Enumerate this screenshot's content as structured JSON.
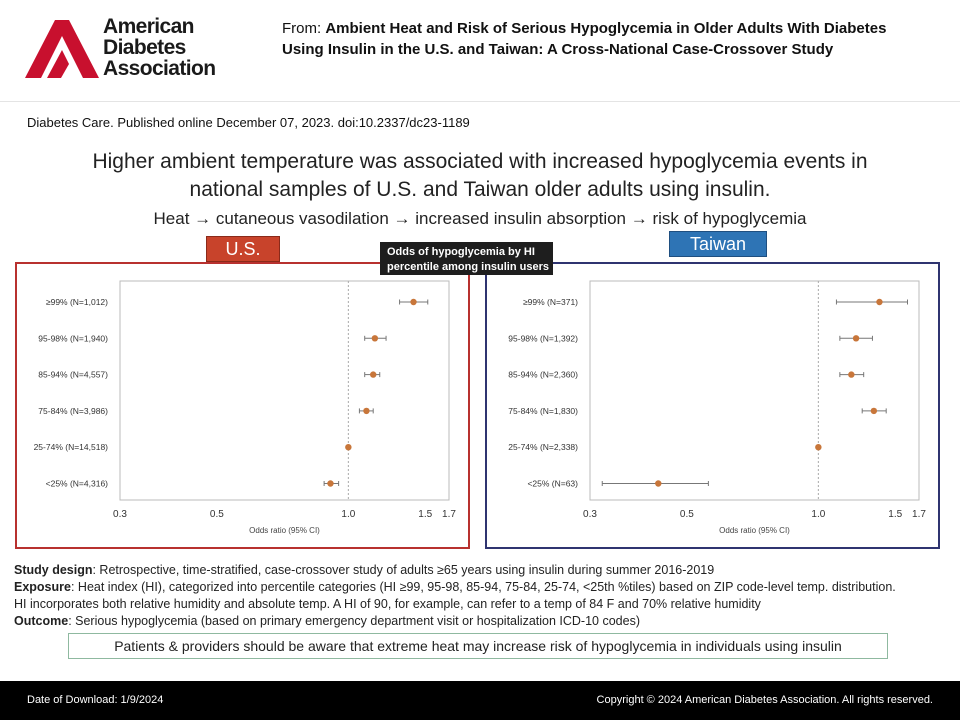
{
  "header": {
    "logo_text": [
      "American",
      "Diabetes",
      "Association"
    ],
    "from_label": "From:",
    "article_title": "Ambient Heat and Risk of Serious Hypoglycemia in Older Adults With Diabetes Using Insulin in the U.S. and Taiwan: A Cross-National Case-Crossover Study",
    "citation": "Diabetes Care. Published online  December 07, 2023. doi:10.2337/dc23-1189"
  },
  "figure": {
    "title": "Higher ambient temperature was associated with increased hypoglycemia events in national samples of U.S. and Taiwan older adults using insulin.",
    "mechanism": "Heat → cutaneous vasodilation → increased insulin absorption → risk of hypoglycemia",
    "callout": "Odds of hypoglycemia by HI percentile among insulin users",
    "colors": {
      "us": "#c8432b",
      "taiwan": "#2e74b5",
      "point": "#c8763a",
      "us_border": "#b8312f",
      "taiwan_border": "#2f3470"
    },
    "notes": {
      "study_design_label": "Study design",
      "study_design": ": Retrospective, time-stratified, case-crossover study of adults ≥65 years using insulin during summer 2016-2019",
      "exposure_label": "Exposure",
      "exposure": ": Heat index (HI), categorized into percentile categories (HI ≥99, 95-98, 85-94, 75-84, 25-74, <25th %tiles) based on ZIP code-level temp. distribution.",
      "exposure_2": "HI incorporates both relative humidity and absolute temp. A HI of 90, for example, can refer to a temp of 84 F and 70% relative humidity",
      "outcome_label": "Outcome",
      "outcome": ": Serious hypoglycemia (based on primary emergency department visit or hospitalization ICD-10 codes)"
    },
    "takeaway": "Patients & providers should be aware that extreme heat may increase risk of hypoglycemia in individuals using insulin"
  },
  "chart_data": [
    {
      "type": "forest",
      "title": "U.S.",
      "xlabel": "Odds ratio (95% CI)",
      "xscale": "log",
      "xlim": [
        0.3,
        1.7
      ],
      "xticks": [
        "0.3",
        "0.5",
        "1.0",
        "1.5",
        "1.7"
      ],
      "reference_line": 1.0,
      "categories": [
        "≥99% (N=1,012)",
        "95-98% (N=1,940)",
        "85-94% (N=4,557)",
        "75-84% (N=3,986)",
        "25-74% (N=14,518)",
        "<25% (N=4,316)"
      ],
      "or": [
        1.41,
        1.15,
        1.14,
        1.1,
        1.0,
        0.91
      ],
      "lower": [
        1.31,
        1.09,
        1.09,
        1.06,
        1.0,
        0.88
      ],
      "upper": [
        1.52,
        1.22,
        1.18,
        1.14,
        1.0,
        0.95
      ]
    },
    {
      "type": "forest",
      "title": "Taiwan",
      "xlabel": "Odds ratio (95% CI)",
      "xscale": "log",
      "xlim": [
        0.3,
        1.7
      ],
      "xticks": [
        "0.3",
        "0.5",
        "1.0",
        "1.5",
        "1.7"
      ],
      "reference_line": 1.0,
      "categories": [
        "≥99% (N=371)",
        "95-98% (N=1,392)",
        "85-94% (N=2,360)",
        "75-84% (N=1,830)",
        "25-74% (N=2,338)",
        "<25% (N=63)"
      ],
      "or": [
        1.38,
        1.22,
        1.19,
        1.34,
        1.0,
        0.43
      ],
      "lower": [
        1.1,
        1.12,
        1.12,
        1.26,
        1.0,
        0.32
      ],
      "upper": [
        1.6,
        1.33,
        1.27,
        1.43,
        1.0,
        0.56
      ]
    }
  ],
  "footer": {
    "download": "Date of Download:  1/9/2024",
    "copyright": "Copyright © 2024 American Diabetes Association. All rights reserved."
  }
}
